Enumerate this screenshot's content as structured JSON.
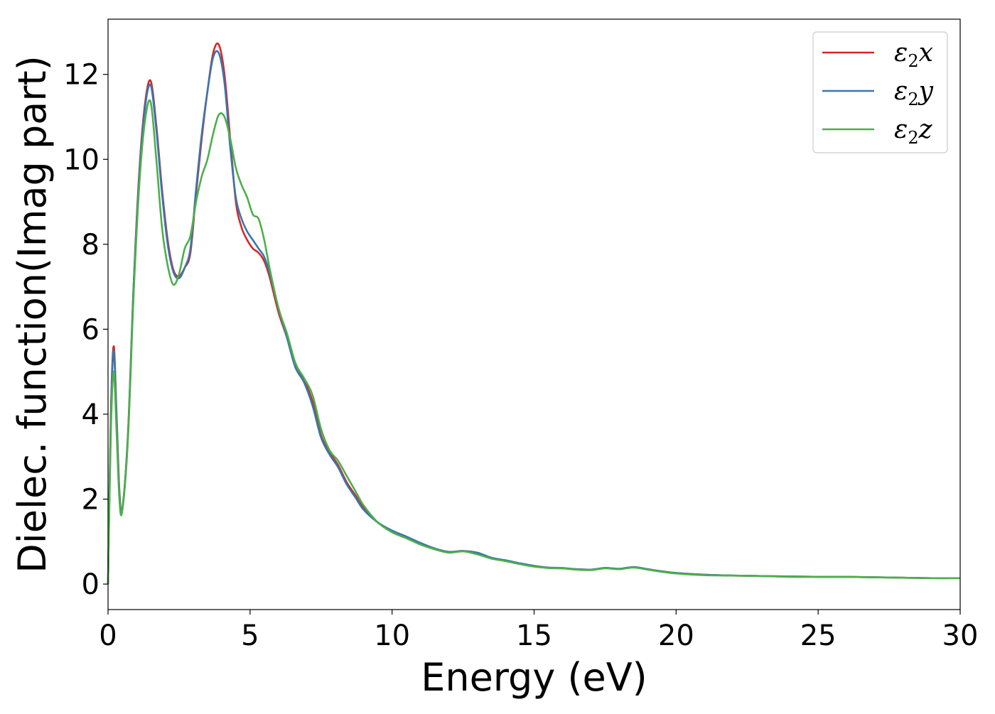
{
  "chart_data": {
    "type": "line",
    "title": "",
    "xlabel": "Energy (eV)",
    "ylabel": "Dielec. function(Imag part)",
    "xlim": [
      0,
      30
    ],
    "ylim": [
      -0.6,
      13.3
    ],
    "xticks": [
      0,
      5,
      10,
      15,
      20,
      25,
      30
    ],
    "yticks": [
      0,
      2,
      4,
      6,
      8,
      10,
      12
    ],
    "grid": false,
    "legend_position": "top-right",
    "legend_labels_markup": [
      "ε<sub>2</sub>x",
      "ε<sub>2</sub>y",
      "ε<sub>2</sub>z"
    ],
    "series": [
      {
        "name": "ε2x",
        "color": "#d62728",
        "x": [
          0,
          0.1,
          0.2,
          0.3,
          0.4,
          0.5,
          0.7,
          0.9,
          1.1,
          1.3,
          1.5,
          1.7,
          1.9,
          2.1,
          2.3,
          2.5,
          2.7,
          2.9,
          3.1,
          3.3,
          3.5,
          3.7,
          3.9,
          4.1,
          4.3,
          4.5,
          4.7,
          4.9,
          5.1,
          5.3,
          5.5,
          5.7,
          6.0,
          6.3,
          6.6,
          6.9,
          7.2,
          7.5,
          7.8,
          8.1,
          8.4,
          8.7,
          9.0,
          9.5,
          10.0,
          10.5,
          11.0,
          11.5,
          12.0,
          12.5,
          13.0,
          13.5,
          14.0,
          14.5,
          15.0,
          15.5,
          16.0,
          16.5,
          17.0,
          17.5,
          18.0,
          18.5,
          19.0,
          19.5,
          20.0,
          21.0,
          22.0,
          23.0,
          24.0,
          25.0,
          26.0,
          27.0,
          28.0,
          29.0,
          30.0
        ],
        "y": [
          0.0,
          4.0,
          5.6,
          4.0,
          2.2,
          1.75,
          3.5,
          7.0,
          9.7,
          11.3,
          11.85,
          10.8,
          9.3,
          8.1,
          7.4,
          7.25,
          7.45,
          7.8,
          9.2,
          10.5,
          11.6,
          12.5,
          12.7,
          12.0,
          10.5,
          9.0,
          8.4,
          8.1,
          7.9,
          7.8,
          7.6,
          7.2,
          6.4,
          5.8,
          5.1,
          4.8,
          4.3,
          3.5,
          3.1,
          2.8,
          2.4,
          2.1,
          1.8,
          1.45,
          1.25,
          1.1,
          0.95,
          0.82,
          0.75,
          0.78,
          0.72,
          0.6,
          0.55,
          0.48,
          0.42,
          0.38,
          0.37,
          0.35,
          0.34,
          0.38,
          0.36,
          0.4,
          0.35,
          0.3,
          0.26,
          0.22,
          0.2,
          0.19,
          0.18,
          0.17,
          0.17,
          0.16,
          0.15,
          0.14,
          0.14
        ]
      },
      {
        "name": "ε2y",
        "color": "#3a75b0",
        "x": [
          0,
          0.1,
          0.2,
          0.3,
          0.4,
          0.5,
          0.7,
          0.9,
          1.1,
          1.3,
          1.5,
          1.7,
          1.9,
          2.1,
          2.3,
          2.5,
          2.7,
          2.9,
          3.1,
          3.3,
          3.5,
          3.7,
          3.9,
          4.1,
          4.3,
          4.5,
          4.7,
          4.9,
          5.1,
          5.3,
          5.5,
          5.7,
          6.0,
          6.3,
          6.6,
          6.9,
          7.2,
          7.5,
          7.8,
          8.1,
          8.4,
          8.7,
          9.0,
          9.5,
          10.0,
          10.5,
          11.0,
          11.5,
          12.0,
          12.5,
          13.0,
          13.5,
          14.0,
          14.5,
          15.0,
          15.5,
          16.0,
          16.5,
          17.0,
          17.5,
          18.0,
          18.5,
          19.0,
          19.5,
          20.0,
          21.0,
          22.0,
          23.0,
          24.0,
          25.0,
          26.0,
          27.0,
          28.0,
          29.0,
          30.0
        ],
        "y": [
          0.0,
          3.9,
          5.5,
          3.9,
          2.15,
          1.75,
          3.5,
          7.0,
          9.6,
          11.2,
          11.75,
          10.7,
          9.2,
          8.0,
          7.35,
          7.2,
          7.45,
          7.9,
          9.3,
          10.6,
          11.6,
          12.4,
          12.5,
          11.8,
          10.3,
          9.1,
          8.6,
          8.3,
          8.1,
          7.9,
          7.7,
          7.3,
          6.5,
          5.8,
          5.1,
          4.75,
          4.2,
          3.45,
          3.05,
          2.75,
          2.35,
          2.05,
          1.75,
          1.45,
          1.26,
          1.12,
          0.97,
          0.84,
          0.76,
          0.78,
          0.74,
          0.62,
          0.56,
          0.49,
          0.43,
          0.39,
          0.38,
          0.35,
          0.34,
          0.38,
          0.36,
          0.4,
          0.35,
          0.3,
          0.26,
          0.22,
          0.2,
          0.19,
          0.18,
          0.17,
          0.17,
          0.16,
          0.15,
          0.14,
          0.14
        ]
      },
      {
        "name": "ε2z",
        "color": "#4daf4a",
        "x": [
          0,
          0.1,
          0.2,
          0.3,
          0.4,
          0.5,
          0.7,
          0.9,
          1.1,
          1.3,
          1.5,
          1.7,
          1.9,
          2.1,
          2.3,
          2.5,
          2.7,
          2.9,
          3.1,
          3.3,
          3.5,
          3.7,
          3.9,
          4.1,
          4.3,
          4.5,
          4.7,
          4.9,
          5.1,
          5.3,
          5.5,
          5.7,
          6.0,
          6.3,
          6.6,
          6.9,
          7.2,
          7.5,
          7.8,
          8.1,
          8.4,
          8.7,
          9.0,
          9.5,
          10.0,
          10.5,
          11.0,
          11.5,
          12.0,
          12.5,
          13.0,
          13.5,
          14.0,
          14.5,
          15.0,
          15.5,
          16.0,
          16.5,
          17.0,
          17.5,
          18.0,
          18.5,
          19.0,
          19.5,
          20.0,
          21.0,
          22.0,
          23.0,
          24.0,
          25.0,
          26.0,
          27.0,
          28.0,
          29.0,
          30.0
        ],
        "y": [
          0.0,
          3.6,
          5.0,
          3.6,
          2.0,
          1.72,
          3.4,
          6.8,
          9.4,
          10.9,
          11.35,
          10.0,
          8.4,
          7.5,
          7.05,
          7.3,
          7.9,
          8.2,
          9.0,
          9.6,
          10.0,
          10.6,
          11.05,
          11.0,
          10.5,
          9.8,
          9.4,
          9.1,
          8.7,
          8.6,
          8.1,
          7.4,
          6.5,
          5.9,
          5.2,
          4.85,
          4.45,
          3.65,
          3.15,
          2.9,
          2.55,
          2.2,
          1.85,
          1.45,
          1.22,
          1.08,
          0.93,
          0.82,
          0.74,
          0.77,
          0.7,
          0.6,
          0.54,
          0.47,
          0.41,
          0.38,
          0.37,
          0.34,
          0.33,
          0.37,
          0.35,
          0.39,
          0.34,
          0.29,
          0.25,
          0.21,
          0.2,
          0.19,
          0.17,
          0.17,
          0.17,
          0.16,
          0.15,
          0.14,
          0.14
        ]
      }
    ]
  }
}
